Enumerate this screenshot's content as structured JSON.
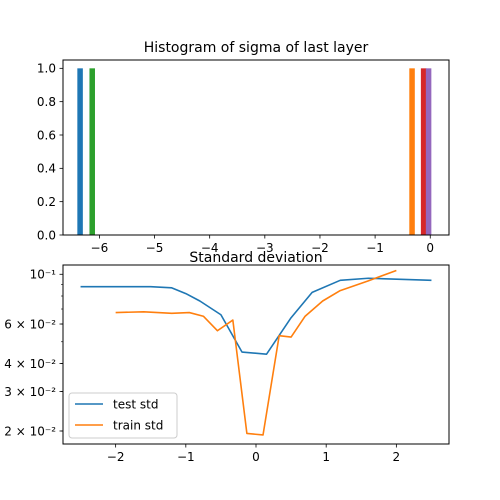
{
  "chart_data": [
    {
      "type": "bar",
      "title": "Histogram of sigma of last layer",
      "xlabel": "",
      "ylabel": "",
      "xlim": [
        -6.66,
        0.34
      ],
      "ylim": [
        0,
        1.05
      ],
      "xticks": [
        -6,
        -5,
        -4,
        -3,
        -2,
        -1,
        0
      ],
      "xtick_labels": [
        "−6",
        "−5",
        "−4",
        "−3",
        "−2",
        "−1",
        "0"
      ],
      "yticks": [
        0.0,
        0.2,
        0.4,
        0.6,
        0.8,
        1.0
      ],
      "ytick_labels": [
        "0.0",
        "0.2",
        "0.4",
        "0.6",
        "0.8",
        "1.0"
      ],
      "bar_width": 0.1,
      "bars": [
        {
          "x": -6.35,
          "value": 1.0,
          "color": "#1f77b4"
        },
        {
          "x": -6.13,
          "value": 1.0,
          "color": "#2ca02c"
        },
        {
          "x": -0.33,
          "value": 1.0,
          "color": "#ff7f0e"
        },
        {
          "x": -0.12,
          "value": 1.0,
          "color": "#d62728"
        },
        {
          "x": -0.03,
          "value": 1.0,
          "color": "#9467bd"
        }
      ],
      "grid": false
    },
    {
      "type": "line",
      "title": "Standard deviation",
      "xlabel": "",
      "ylabel": "",
      "yscale": "log",
      "xlim": [
        -2.75,
        2.75
      ],
      "ylim": [
        0.0175,
        0.11
      ],
      "xticks": [
        -2,
        -1,
        0,
        1,
        2
      ],
      "xtick_labels": [
        "−2",
        "−1",
        "0",
        "1",
        "2"
      ],
      "yticks": [
        0.02,
        0.03,
        0.04,
        0.06,
        0.1
      ],
      "ytick_labels": [
        "2 × 10⁻²",
        "3 × 10⁻²",
        "4 × 10⁻²",
        "6 × 10⁻²",
        "10⁻¹"
      ],
      "legend": "lower-left",
      "series": [
        {
          "name": "test std",
          "color": "#1f77b4",
          "x": [
            -2.5,
            -2.0,
            -1.5,
            -1.2,
            -1.0,
            -0.8,
            -0.5,
            -0.2,
            0.15,
            0.5,
            0.8,
            1.2,
            1.6,
            2.5
          ],
          "y": [
            0.088,
            0.088,
            0.088,
            0.087,
            0.082,
            0.076,
            0.066,
            0.045,
            0.044,
            0.064,
            0.083,
            0.094,
            0.096,
            0.094
          ]
        },
        {
          "name": "train std",
          "color": "#ff7f0e",
          "x": [
            -2.0,
            -1.6,
            -1.2,
            -0.95,
            -0.75,
            -0.55,
            -0.33,
            -0.13,
            0.1,
            0.33,
            0.5,
            0.7,
            0.95,
            1.2,
            1.6,
            2.0
          ],
          "y": [
            0.0675,
            0.068,
            0.067,
            0.0675,
            0.065,
            0.056,
            0.0625,
            0.0195,
            0.0192,
            0.0532,
            0.0525,
            0.065,
            0.076,
            0.0846,
            0.0935,
            0.104
          ]
        }
      ],
      "grid": false
    }
  ]
}
